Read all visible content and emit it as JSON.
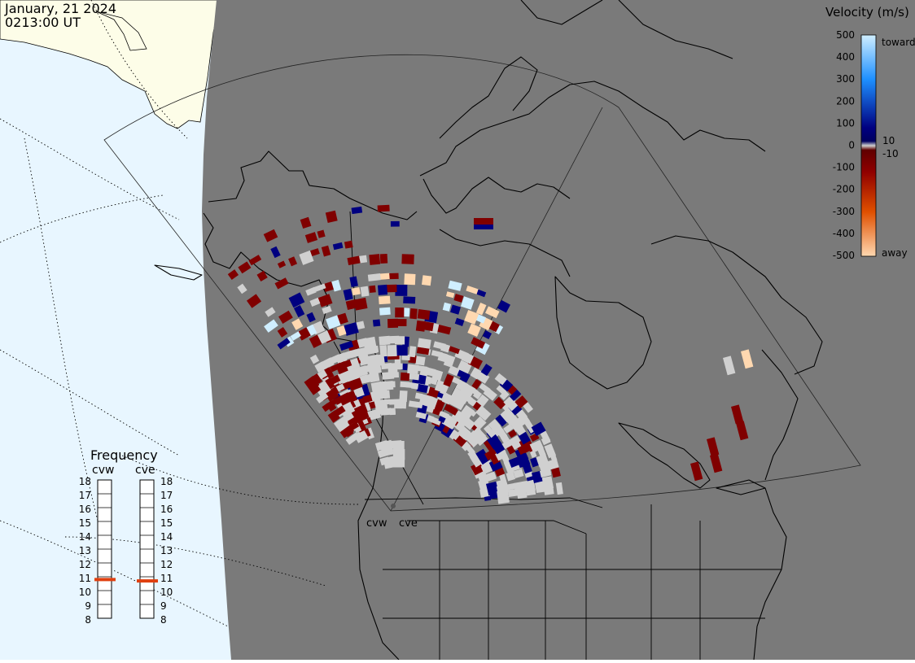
{
  "header": {
    "date": "January, 21 2024",
    "time": "0213:00 UT"
  },
  "velocity_scale": {
    "title": "Velocity (m/s)",
    "ticks": [
      "500",
      "400",
      "300",
      "200",
      "100",
      "0",
      "-100",
      "-200",
      "-300",
      "-400",
      "-500"
    ],
    "small_ticks": [
      "10",
      "-10"
    ],
    "toward_label": "toward",
    "away_label": "away",
    "colors": {
      "toward_light": "#cfeeff",
      "toward_mid": "#1e90ff",
      "toward_dark": "#000080",
      "zero": "#d0d0d0",
      "away_dark": "#800000",
      "away_mid": "#e05000",
      "away_light": "#ffd8b0"
    }
  },
  "frequency": {
    "title": "Frequency",
    "radars": [
      {
        "name": "cvw",
        "value": 10.8
      },
      {
        "name": "cve",
        "value": 10.7
      }
    ],
    "ticks": [
      "18",
      "17",
      "16",
      "15",
      "14",
      "13",
      "12",
      "11",
      "10",
      "9",
      "8"
    ],
    "marker_color": "#e04010"
  },
  "stations": [
    "cvw",
    "cve"
  ],
  "map_colors": {
    "night": "#7a7a7a",
    "day_sky": "#e8f6ff",
    "day_land": "#fdfde8",
    "ground_scatter": "#d0d0d0"
  }
}
